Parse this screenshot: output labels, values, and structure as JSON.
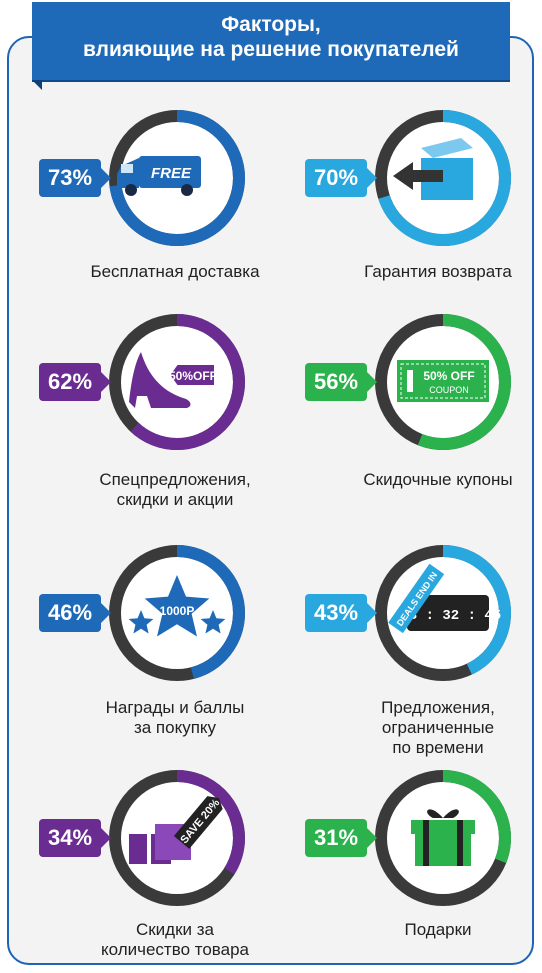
{
  "header": {
    "title_line1": "Факторы,",
    "title_line2": "влияющие на решение покупателей"
  },
  "colors": {
    "blue": "#1e6ab8",
    "lightblue": "#29a8e0",
    "purple": "#6a2c91",
    "green": "#2bb24c",
    "dark": "#3a3a3a"
  },
  "factors": [
    {
      "percent": "73%",
      "value": 73,
      "color": "blue",
      "label_lines": [
        "Бесплатная доставка"
      ],
      "icon": "free-delivery-truck-icon",
      "icon_text": "FREE"
    },
    {
      "percent": "70%",
      "value": 70,
      "color": "lightblue",
      "label_lines": [
        "Гарантия возврата"
      ],
      "icon": "return-box-icon"
    },
    {
      "percent": "62%",
      "value": 62,
      "color": "purple",
      "label_lines": [
        "Спецпредложения,",
        "скидки и акции"
      ],
      "icon": "shoe-tag-icon",
      "icon_text": "50%OFF"
    },
    {
      "percent": "56%",
      "value": 56,
      "color": "green",
      "label_lines": [
        "Скидочные купоны"
      ],
      "icon": "coupon-icon",
      "icon_text": "50% OFF",
      "icon_text2": "COUPON"
    },
    {
      "percent": "46%",
      "value": 46,
      "color": "blue",
      "label_lines": [
        "Награды и баллы",
        "за покупку"
      ],
      "icon": "stars-icon",
      "icon_text": "1000P"
    },
    {
      "percent": "43%",
      "value": 43,
      "color": "lightblue",
      "label_lines": [
        "Предложения,",
        "ограниченные",
        "по времени"
      ],
      "icon": "timer-icon",
      "icon_text": "DEALS END IN",
      "icon_text2": "3 : 32 : 45"
    },
    {
      "percent": "34%",
      "value": 34,
      "color": "purple",
      "label_lines": [
        "Скидки за",
        "количество товара"
      ],
      "icon": "gift-boxes-icon",
      "icon_text": "SAVE 20%"
    },
    {
      "percent": "31%",
      "value": 31,
      "color": "green",
      "label_lines": [
        "Подарки"
      ],
      "icon": "gift-icon"
    }
  ]
}
